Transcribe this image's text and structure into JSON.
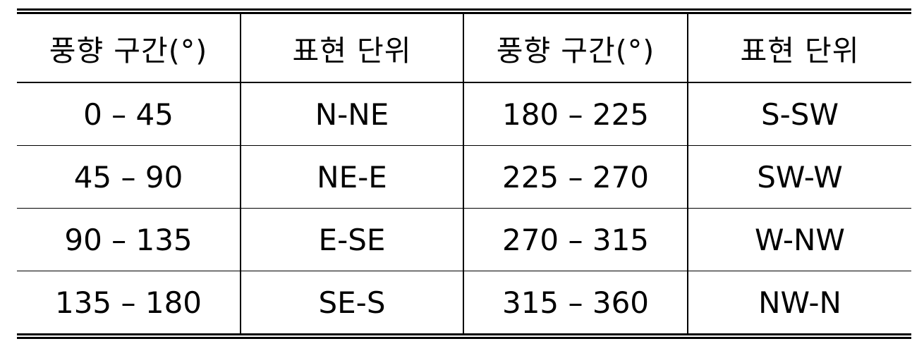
{
  "table": {
    "headers": [
      "풍향 구간(°)",
      "표현 단위",
      "풍향 구간(°)",
      "표현 단위"
    ],
    "rows": [
      [
        "0 – 45",
        "N-NE",
        "180 – 225",
        "S-SW"
      ],
      [
        "45 – 90",
        "NE-E",
        "225 – 270",
        "SW-W"
      ],
      [
        "90 – 135",
        "E-SE",
        "270 – 315",
        "W-NW"
      ],
      [
        "135 – 180",
        "SE-S",
        "315 – 360",
        "NW-N"
      ]
    ]
  }
}
